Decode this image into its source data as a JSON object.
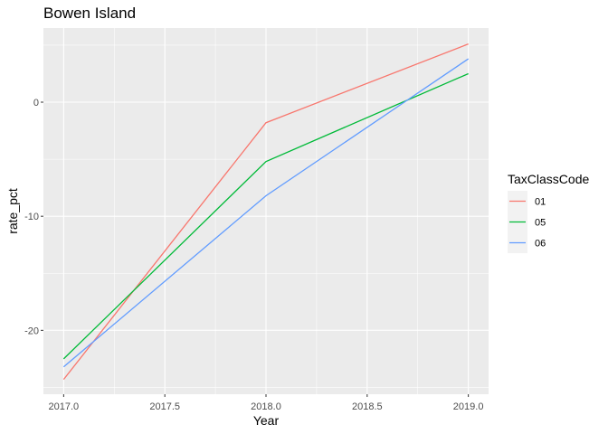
{
  "chart_data": {
    "type": "line",
    "title": "Bowen Island",
    "xlabel": "Year",
    "ylabel": "rate_pct",
    "x": [
      2017.0,
      2018.0,
      2019.0
    ],
    "x_ticks": [
      2017.0,
      2017.5,
      2018.0,
      2018.5,
      2019.0
    ],
    "x_tick_labels": [
      "2017.0",
      "2017.5",
      "2018.0",
      "2018.5",
      "2019.0"
    ],
    "y_ticks": [
      -20,
      -10,
      0
    ],
    "y_tick_labels": [
      "-20",
      "-10",
      "0"
    ],
    "xlim": [
      2016.9,
      2019.1
    ],
    "ylim": [
      -25.6,
      6.5
    ],
    "grid": true,
    "legend": {
      "title": "TaxClassCode",
      "position": "right"
    },
    "series": [
      {
        "name": "01",
        "color": "#F8766D",
        "values": [
          -24.3,
          -1.8,
          5.1
        ]
      },
      {
        "name": "05",
        "color": "#00BA38",
        "values": [
          -22.5,
          -5.2,
          2.5
        ]
      },
      {
        "name": "06",
        "color": "#619CFF",
        "values": [
          -23.2,
          -8.2,
          3.8
        ]
      }
    ]
  }
}
